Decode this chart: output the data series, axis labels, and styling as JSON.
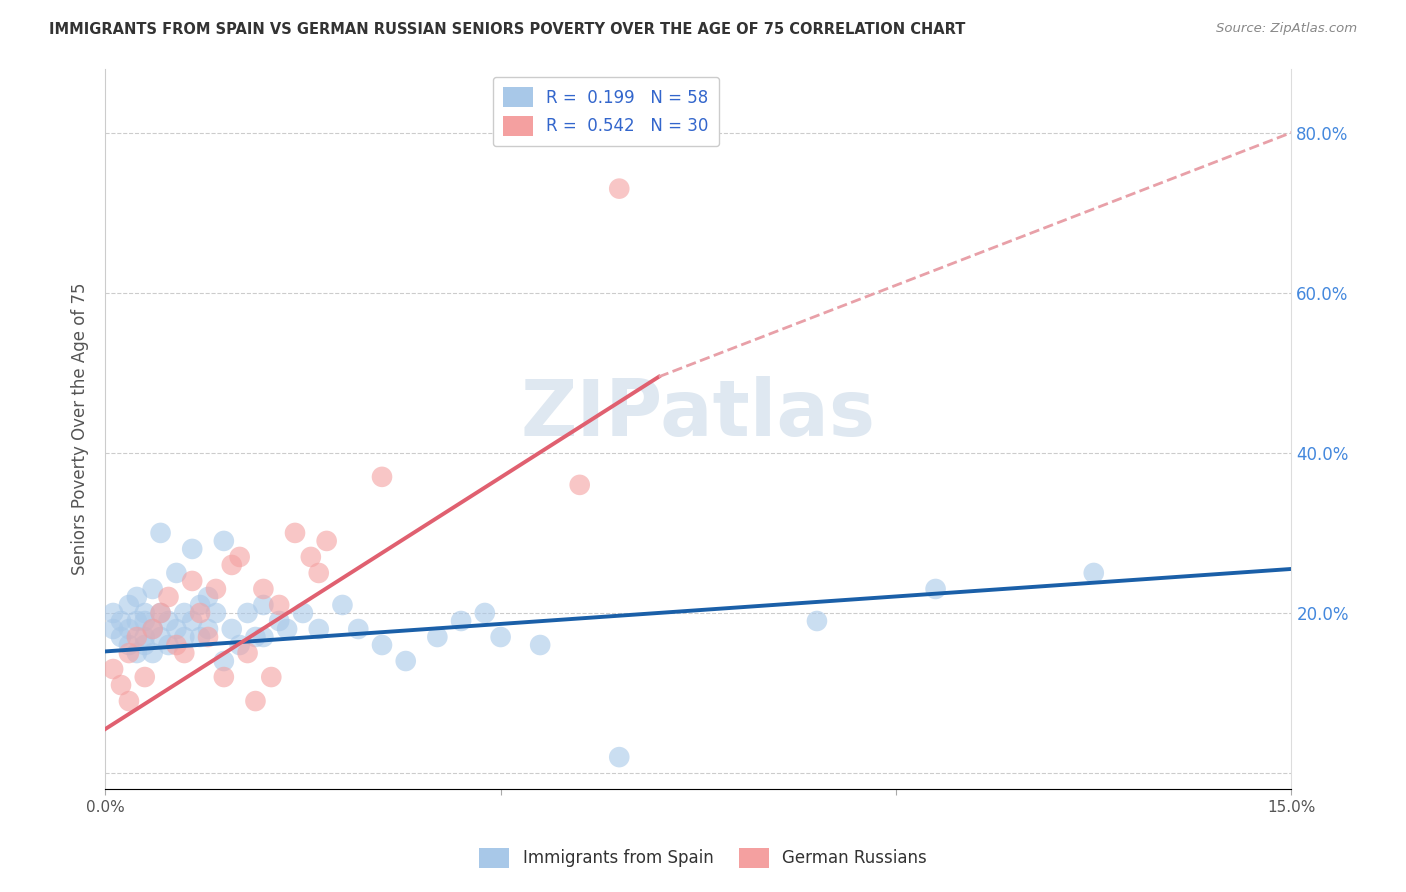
{
  "title": "IMMIGRANTS FROM SPAIN VS GERMAN RUSSIAN SENIORS POVERTY OVER THE AGE OF 75 CORRELATION CHART",
  "source": "Source: ZipAtlas.com",
  "ylabel": "Seniors Poverty Over the Age of 75",
  "xlim": [
    0.0,
    0.15
  ],
  "ylim": [
    -0.02,
    0.88
  ],
  "xticks": [
    0.0,
    0.05,
    0.1,
    0.15
  ],
  "xticklabels": [
    "0.0%",
    "",
    "",
    "15.0%"
  ],
  "yticks_right": [
    0.2,
    0.4,
    0.6,
    0.8
  ],
  "yticklabels_right": [
    "20.0%",
    "40.0%",
    "60.0%",
    "80.0%"
  ],
  "grid_yticks": [
    0.0,
    0.2,
    0.4,
    0.6,
    0.8
  ],
  "legend_label1": "R =  0.199   N = 58",
  "legend_label2": "R =  0.542   N = 30",
  "color_blue": "#a8c8e8",
  "color_pink": "#f4a0a0",
  "color_blue_line": "#1a5fa8",
  "color_pink_line": "#e06070",
  "color_dashed": "#e8a0a8",
  "watermark": "ZIPatlas",
  "watermark_color": "#b8cce0",
  "blue_scatter_x": [
    0.001,
    0.001,
    0.002,
    0.002,
    0.003,
    0.003,
    0.003,
    0.004,
    0.004,
    0.004,
    0.005,
    0.005,
    0.005,
    0.005,
    0.006,
    0.006,
    0.006,
    0.007,
    0.007,
    0.007,
    0.008,
    0.008,
    0.009,
    0.009,
    0.01,
    0.01,
    0.011,
    0.011,
    0.012,
    0.012,
    0.013,
    0.013,
    0.014,
    0.015,
    0.015,
    0.016,
    0.017,
    0.018,
    0.019,
    0.02,
    0.02,
    0.022,
    0.023,
    0.025,
    0.027,
    0.03,
    0.032,
    0.035,
    0.038,
    0.042,
    0.045,
    0.048,
    0.05,
    0.055,
    0.065,
    0.09,
    0.105,
    0.125
  ],
  "blue_scatter_y": [
    0.18,
    0.2,
    0.17,
    0.19,
    0.16,
    0.18,
    0.21,
    0.15,
    0.19,
    0.22,
    0.17,
    0.2,
    0.16,
    0.19,
    0.15,
    0.23,
    0.18,
    0.2,
    0.17,
    0.3,
    0.16,
    0.19,
    0.18,
    0.25,
    0.17,
    0.2,
    0.28,
    0.19,
    0.17,
    0.21,
    0.22,
    0.18,
    0.2,
    0.14,
    0.29,
    0.18,
    0.16,
    0.2,
    0.17,
    0.21,
    0.17,
    0.19,
    0.18,
    0.2,
    0.18,
    0.21,
    0.18,
    0.16,
    0.14,
    0.17,
    0.19,
    0.2,
    0.17,
    0.16,
    0.02,
    0.19,
    0.23,
    0.25
  ],
  "pink_scatter_x": [
    0.001,
    0.002,
    0.003,
    0.003,
    0.004,
    0.005,
    0.006,
    0.007,
    0.008,
    0.009,
    0.01,
    0.011,
    0.012,
    0.013,
    0.014,
    0.015,
    0.016,
    0.017,
    0.018,
    0.019,
    0.02,
    0.021,
    0.022,
    0.024,
    0.026,
    0.027,
    0.028,
    0.035,
    0.06,
    0.065
  ],
  "pink_scatter_y": [
    0.13,
    0.11,
    0.15,
    0.09,
    0.17,
    0.12,
    0.18,
    0.2,
    0.22,
    0.16,
    0.15,
    0.24,
    0.2,
    0.17,
    0.23,
    0.12,
    0.26,
    0.27,
    0.15,
    0.09,
    0.23,
    0.12,
    0.21,
    0.3,
    0.27,
    0.25,
    0.29,
    0.37,
    0.36,
    0.73
  ],
  "blue_trend_x": [
    0.0,
    0.15
  ],
  "blue_trend_y": [
    0.152,
    0.255
  ],
  "pink_trend_x": [
    0.0,
    0.07
  ],
  "pink_trend_y": [
    0.055,
    0.495
  ],
  "dashed_trend_x": [
    0.07,
    0.15
  ],
  "dashed_trend_y": [
    0.495,
    0.8
  ],
  "bottom_legend1": "Immigrants from Spain",
  "bottom_legend2": "German Russians"
}
